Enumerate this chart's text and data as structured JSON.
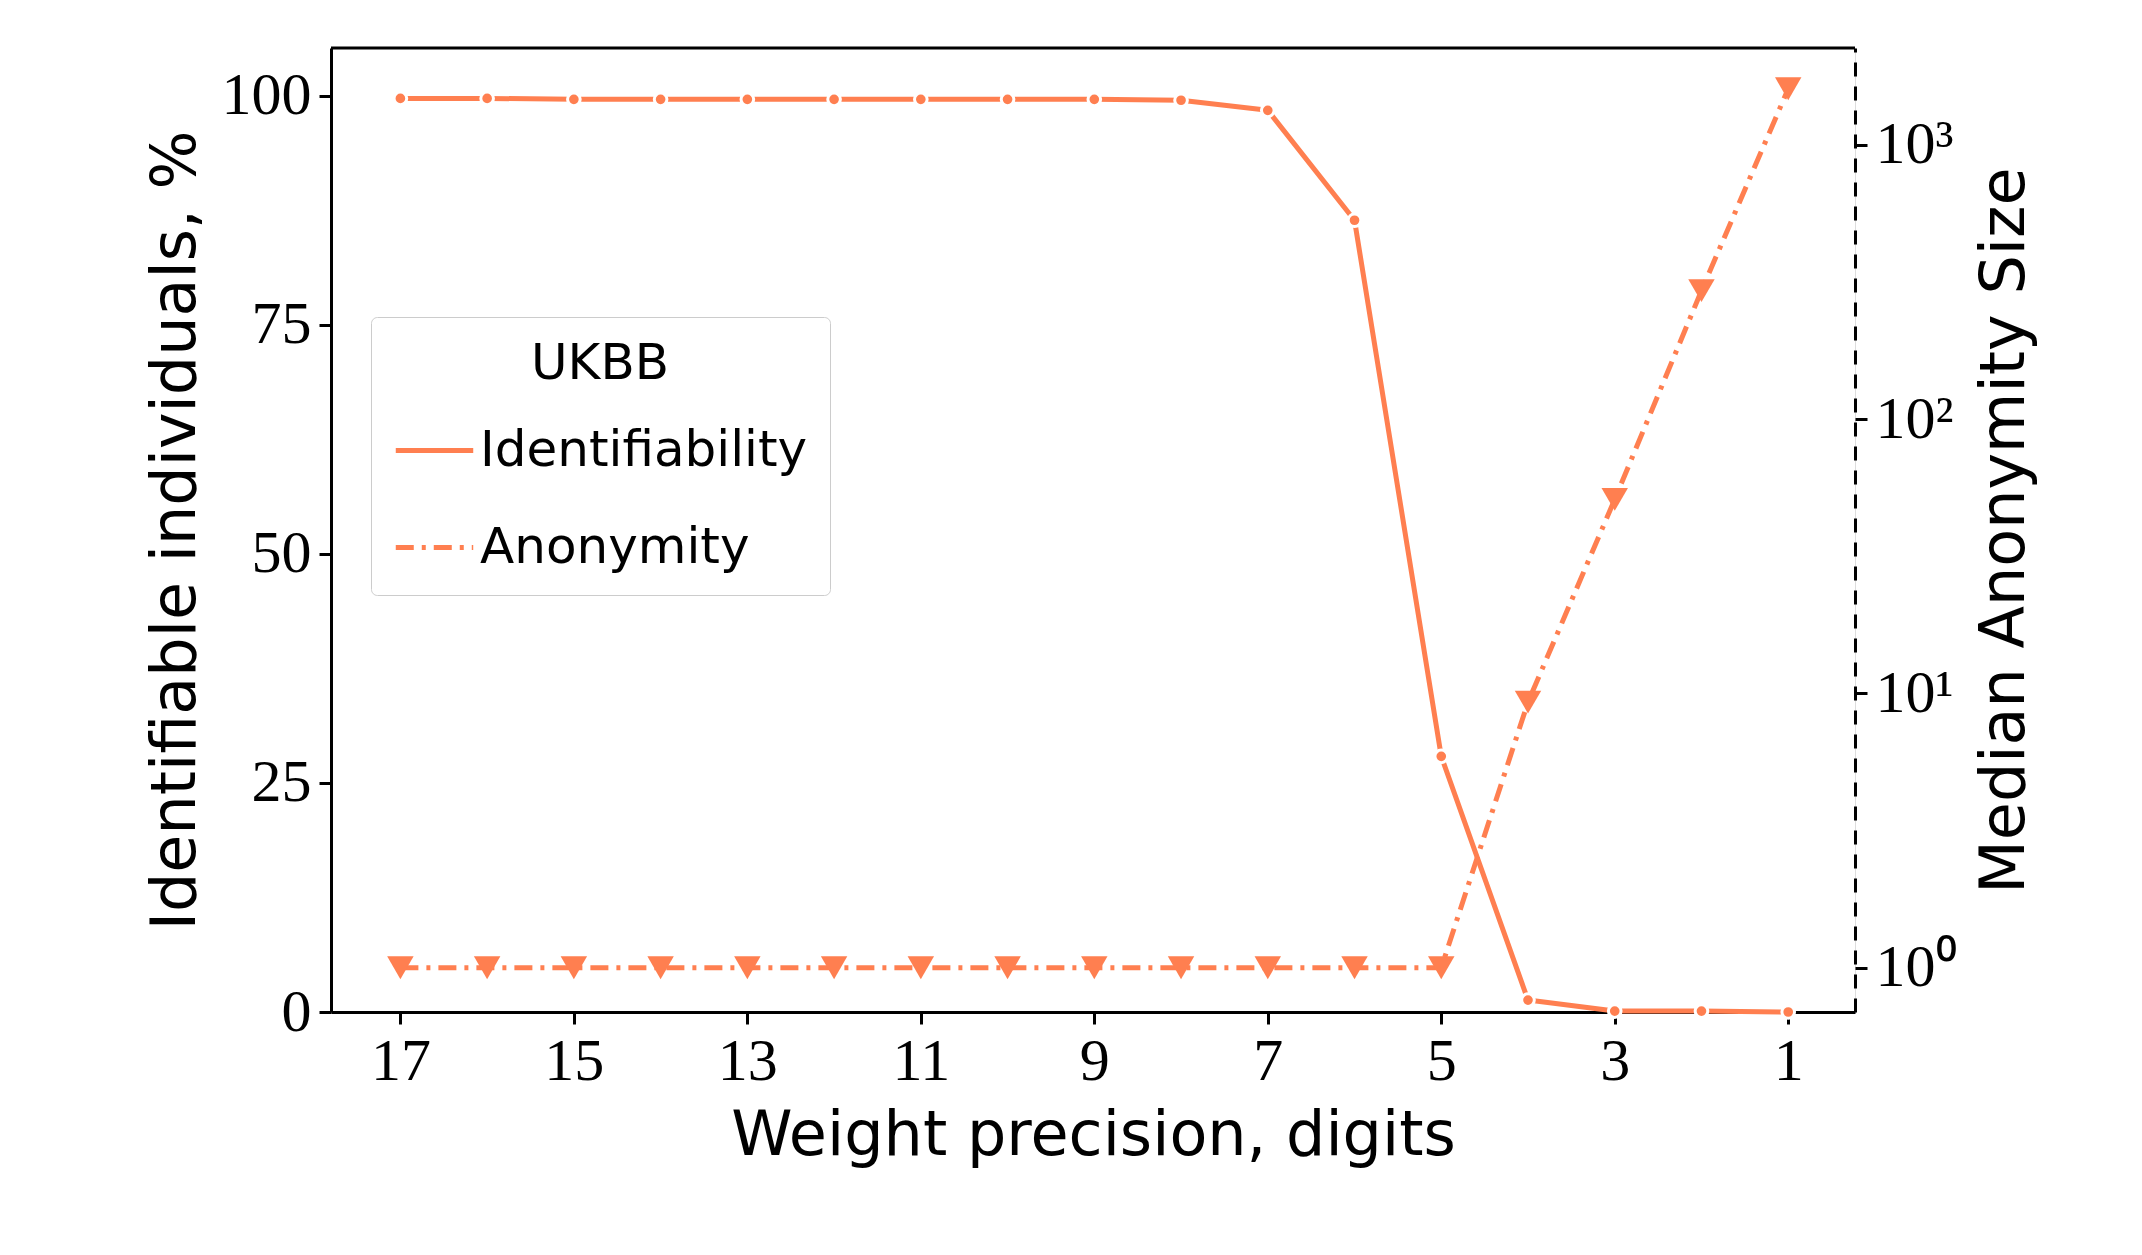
{
  "chart_data": {
    "type": "line",
    "xlabel": "Weight precision, digits",
    "ylabel": "Identifiable individuals, %",
    "y2label": "Median Anonymity Size",
    "legend_title": "UKBB",
    "legend": "left",
    "x": [
      17,
      16,
      15,
      14,
      13,
      12,
      11,
      10,
      9,
      8,
      7,
      6,
      5,
      4,
      3,
      2,
      1
    ],
    "xlim": [
      17.8,
      0.23
    ],
    "xticks": [
      17,
      15,
      13,
      11,
      9,
      7,
      5,
      3,
      1
    ],
    "ylim": [
      0,
      105.2
    ],
    "yticks": [
      0,
      25,
      50,
      75,
      100
    ],
    "y2lim": [
      0.69,
      2254
    ],
    "y2ticks": [
      {
        "value": 1,
        "label": "10⁰"
      },
      {
        "value": 10,
        "label": "10¹"
      },
      {
        "value": 100,
        "label": "10²"
      },
      {
        "value": 1000,
        "label": "10³"
      }
    ],
    "log": "y2",
    "grid": false,
    "series": [
      {
        "name": "Identifiability",
        "color": "#ff7f50",
        "marker": "circle",
        "line_style": "solid",
        "values": [
          99.7,
          99.7,
          99.6,
          99.6,
          99.6,
          99.6,
          99.6,
          99.6,
          99.6,
          99.5,
          98.4,
          86.4,
          27.9,
          1.3,
          0.1,
          0.1,
          0.0
        ]
      },
      {
        "name": "Anonymity",
        "color": "#ff7f50",
        "marker": "triangle",
        "line_style": "dashed",
        "axis": "y2",
        "values": [
          1,
          1,
          1,
          1,
          1,
          1,
          1,
          1,
          1,
          1,
          1,
          1,
          1,
          9.3,
          51,
          294,
          1600
        ]
      }
    ]
  }
}
